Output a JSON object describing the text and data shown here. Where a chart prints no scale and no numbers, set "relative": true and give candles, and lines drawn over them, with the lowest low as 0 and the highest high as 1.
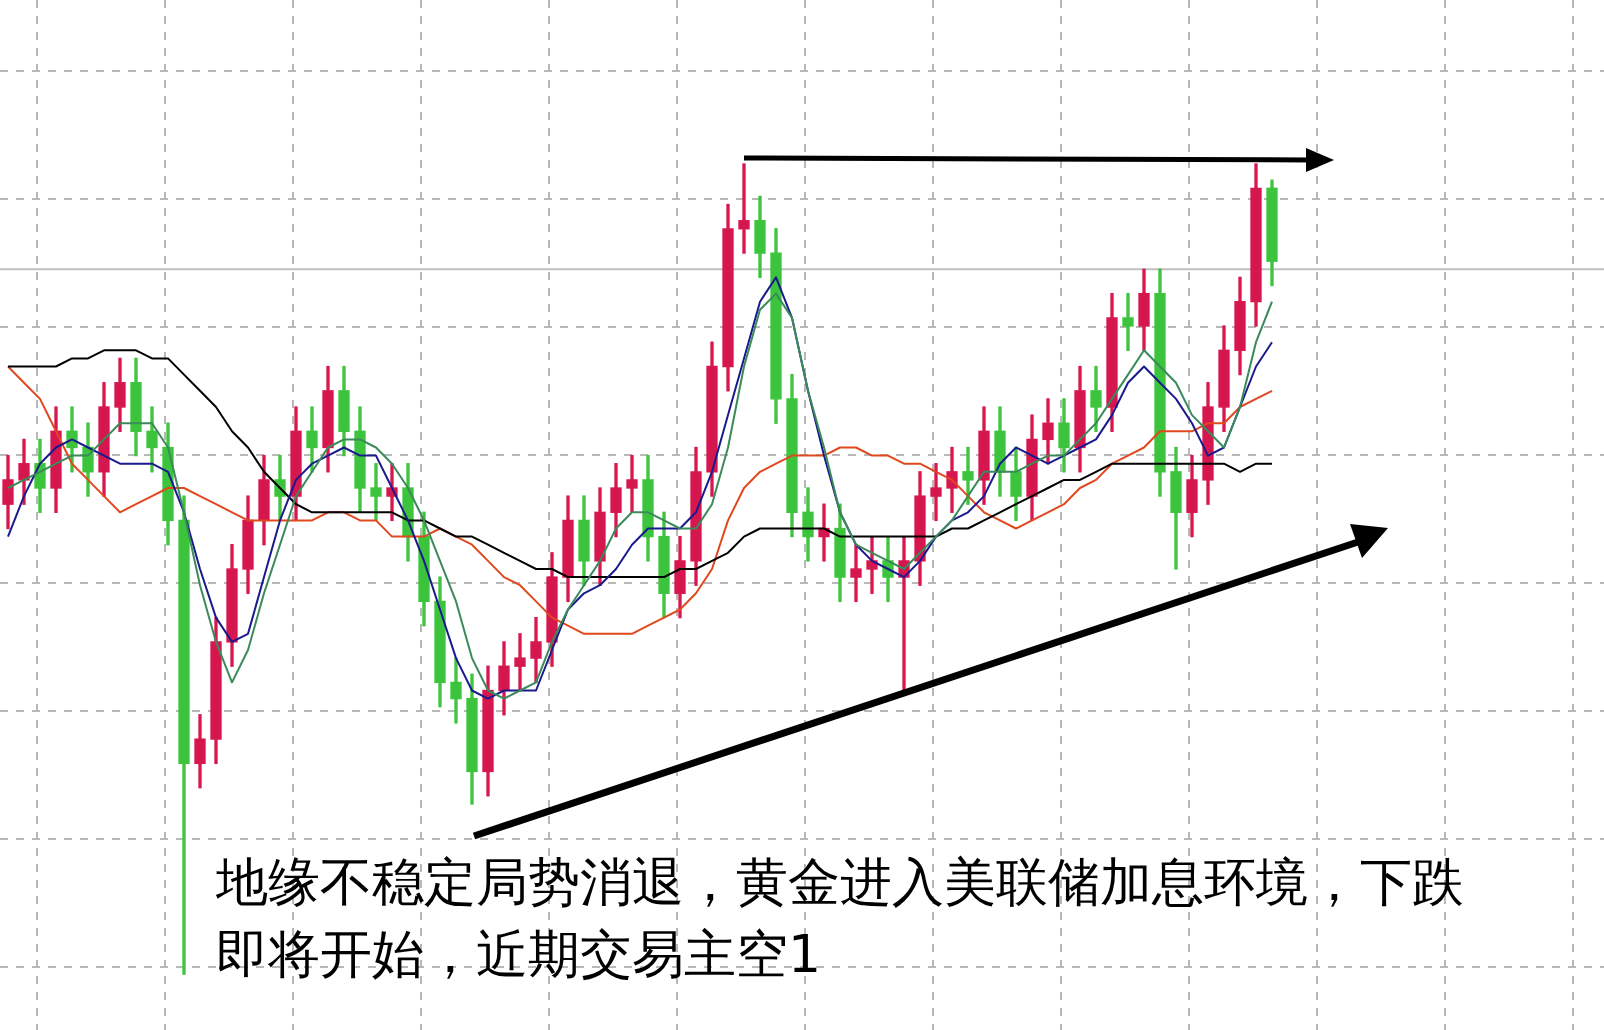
{
  "chart_data": {
    "type": "candlestick",
    "relative": true,
    "tick_labels": false,
    "grid": true,
    "legend": false,
    "marker": "none",
    "categories": [
      null,
      null,
      null,
      null,
      null,
      null,
      null,
      null,
      null,
      null,
      null,
      null,
      null,
      null,
      null,
      null,
      null,
      null,
      null,
      null,
      null,
      null,
      null,
      null,
      null,
      null,
      null,
      null,
      null,
      null,
      null,
      null,
      null,
      null,
      null,
      null,
      null,
      null,
      null,
      null,
      null,
      null,
      null,
      null,
      null,
      null,
      null,
      null,
      null,
      null,
      null,
      null,
      null,
      null,
      null,
      null,
      null,
      null,
      null,
      null,
      null,
      null,
      null,
      null,
      null,
      null,
      null,
      null,
      null,
      null,
      null,
      null,
      null,
      null,
      null,
      null,
      null,
      null,
      null,
      null
    ],
    "ohlc": [
      [
        0.58,
        0.64,
        0.55,
        0.61
      ],
      [
        0.61,
        0.66,
        0.58,
        0.63
      ],
      [
        0.63,
        0.66,
        0.57,
        0.6
      ],
      [
        0.6,
        0.7,
        0.57,
        0.67
      ],
      [
        0.67,
        0.7,
        0.62,
        0.65
      ],
      [
        0.65,
        0.68,
        0.59,
        0.62
      ],
      [
        0.62,
        0.73,
        0.59,
        0.7
      ],
      [
        0.7,
        0.76,
        0.67,
        0.73
      ],
      [
        0.73,
        0.76,
        0.64,
        0.67
      ],
      [
        0.67,
        0.7,
        0.62,
        0.65
      ],
      [
        0.65,
        0.68,
        0.53,
        0.56
      ],
      [
        0.56,
        0.59,
        0,
        0.26
      ],
      [
        0.26,
        0.32,
        0.23,
        0.29
      ],
      [
        0.29,
        0.44,
        0.26,
        0.41
      ],
      [
        0.41,
        0.53,
        0.38,
        0.5
      ],
      [
        0.5,
        0.59,
        0.47,
        0.56
      ],
      [
        0.56,
        0.64,
        0.53,
        0.61
      ],
      [
        0.61,
        0.64,
        0.56,
        0.59
      ],
      [
        0.59,
        0.7,
        0.56,
        0.67
      ],
      [
        0.67,
        0.7,
        0.62,
        0.65
      ],
      [
        0.65,
        0.75,
        0.62,
        0.72
      ],
      [
        0.72,
        0.75,
        0.64,
        0.67
      ],
      [
        0.67,
        0.7,
        0.57,
        0.6
      ],
      [
        0.6,
        0.63,
        0.56,
        0.59
      ],
      [
        0.59,
        0.63,
        0.56,
        0.6
      ],
      [
        0.6,
        0.63,
        0.51,
        0.54
      ],
      [
        0.54,
        0.57,
        0.43,
        0.46
      ],
      [
        0.46,
        0.49,
        0.33,
        0.36
      ],
      [
        0.36,
        0.39,
        0.31,
        0.34
      ],
      [
        0.34,
        0.37,
        0.21,
        0.25
      ],
      [
        0.25,
        0.38,
        0.22,
        0.35
      ],
      [
        0.35,
        0.41,
        0.32,
        0.38
      ],
      [
        0.38,
        0.42,
        0.35,
        0.39
      ],
      [
        0.39,
        0.44,
        0.36,
        0.41
      ],
      [
        0.41,
        0.52,
        0.38,
        0.49
      ],
      [
        0.49,
        0.59,
        0.46,
        0.56
      ],
      [
        0.56,
        0.59,
        0.48,
        0.51
      ],
      [
        0.51,
        0.6,
        0.48,
        0.57
      ],
      [
        0.57,
        0.63,
        0.54,
        0.6
      ],
      [
        0.6,
        0.64,
        0.57,
        0.61
      ],
      [
        0.61,
        0.64,
        0.51,
        0.54
      ],
      [
        0.54,
        0.57,
        0.44,
        0.47
      ],
      [
        0.47,
        0.54,
        0.44,
        0.51
      ],
      [
        0.51,
        0.65,
        0.48,
        0.62
      ],
      [
        0.62,
        0.78,
        0.59,
        0.75
      ],
      [
        0.75,
        0.95,
        0.72,
        0.92
      ],
      [
        0.92,
        1.0,
        0.89,
        0.93
      ],
      [
        0.93,
        0.96,
        0.86,
        0.89
      ],
      [
        0.89,
        0.92,
        0.68,
        0.71
      ],
      [
        0.71,
        0.74,
        0.54,
        0.57
      ],
      [
        0.57,
        0.6,
        0.51,
        0.54
      ],
      [
        0.54,
        0.58,
        0.51,
        0.55
      ],
      [
        0.55,
        0.58,
        0.46,
        0.49
      ],
      [
        0.49,
        0.53,
        0.46,
        0.5
      ],
      [
        0.5,
        0.54,
        0.47,
        0.51
      ],
      [
        0.51,
        0.54,
        0.46,
        0.49
      ],
      [
        0.49,
        0.54,
        0.35,
        0.51
      ],
      [
        0.51,
        0.62,
        0.48,
        0.59
      ],
      [
        0.59,
        0.63,
        0.56,
        0.6
      ],
      [
        0.6,
        0.65,
        0.57,
        0.62
      ],
      [
        0.62,
        0.65,
        0.58,
        0.61
      ],
      [
        0.61,
        0.7,
        0.58,
        0.67
      ],
      [
        0.67,
        0.7,
        0.59,
        0.62
      ],
      [
        0.62,
        0.65,
        0.56,
        0.59
      ],
      [
        0.59,
        0.69,
        0.56,
        0.66
      ],
      [
        0.66,
        0.71,
        0.63,
        0.68
      ],
      [
        0.68,
        0.71,
        0.62,
        0.65
      ],
      [
        0.65,
        0.75,
        0.62,
        0.72
      ],
      [
        0.72,
        0.75,
        0.67,
        0.7
      ],
      [
        0.7,
        0.84,
        0.67,
        0.81
      ],
      [
        0.81,
        0.84,
        0.77,
        0.8
      ],
      [
        0.8,
        0.87,
        0.77,
        0.84
      ],
      [
        0.84,
        0.87,
        0.59,
        0.62
      ],
      [
        0.62,
        0.65,
        0.5,
        0.57
      ],
      [
        0.57,
        0.64,
        0.54,
        0.61
      ],
      [
        0.61,
        0.73,
        0.58,
        0.7
      ],
      [
        0.7,
        0.8,
        0.67,
        0.77
      ],
      [
        0.77,
        0.86,
        0.74,
        0.83
      ],
      [
        0.83,
        1.0,
        0.8,
        0.97
      ],
      [
        0.97,
        0.98,
        0.85,
        0.88
      ]
    ],
    "colors": [
      "#d6174f",
      "#d6174f",
      "#3cc43c",
      "#d6174f",
      "#3cc43c",
      "#3cc43c",
      "#d6174f",
      "#d6174f",
      "#3cc43c",
      "#3cc43c",
      "#3cc43c",
      "#3cc43c",
      "#d6174f",
      "#d6174f",
      "#d6174f",
      "#d6174f",
      "#d6174f",
      "#3cc43c",
      "#d6174f",
      "#3cc43c",
      "#d6174f",
      "#3cc43c",
      "#3cc43c",
      "#3cc43c",
      "#d6174f",
      "#3cc43c",
      "#3cc43c",
      "#3cc43c",
      "#3cc43c",
      "#3cc43c",
      "#d6174f",
      "#d6174f",
      "#d6174f",
      "#d6174f",
      "#d6174f",
      "#d6174f",
      "#3cc43c",
      "#d6174f",
      "#d6174f",
      "#d6174f",
      "#3cc43c",
      "#3cc43c",
      "#d6174f",
      "#d6174f",
      "#d6174f",
      "#d6174f",
      "#d6174f",
      "#3cc43c",
      "#3cc43c",
      "#3cc43c",
      "#3cc43c",
      "#d6174f",
      "#3cc43c",
      "#d6174f",
      "#d6174f",
      "#3cc43c",
      "#d6174f",
      "#d6174f",
      "#d6174f",
      "#d6174f",
      "#3cc43c",
      "#d6174f",
      "#3cc43c",
      "#3cc43c",
      "#d6174f",
      "#d6174f",
      "#3cc43c",
      "#d6174f",
      "#3cc43c",
      "#d6174f",
      "#3cc43c",
      "#d6174f",
      "#3cc43c",
      "#3cc43c",
      "#d6174f",
      "#d6174f",
      "#d6174f",
      "#d6174f",
      "#d6174f",
      "#3cc43c"
    ],
    "series": [
      {
        "type": "line",
        "color": "#3a8a5a",
        "values": [
          0.6,
          0.61,
          0.62,
          0.63,
          0.64,
          0.64,
          0.66,
          0.68,
          0.68,
          0.68,
          0.65,
          0.57,
          0.48,
          0.41,
          0.36,
          0.4,
          0.47,
          0.53,
          0.59,
          0.62,
          0.65,
          0.66,
          0.66,
          0.65,
          0.63,
          0.6,
          0.56,
          0.51,
          0.46,
          0.39,
          0.35,
          0.34,
          0.35,
          0.36,
          0.41,
          0.45,
          0.48,
          0.51,
          0.55,
          0.57,
          0.57,
          0.56,
          0.55,
          0.55,
          0.58,
          0.65,
          0.75,
          0.82,
          0.84,
          0.81,
          0.72,
          0.65,
          0.57,
          0.53,
          0.52,
          0.51,
          0.5,
          0.52,
          0.54,
          0.56,
          0.59,
          0.62,
          0.62,
          0.62,
          0.63,
          0.64,
          0.64,
          0.66,
          0.68,
          0.71,
          0.74,
          0.77,
          0.75,
          0.73,
          0.69,
          0.67,
          0.65,
          0.7,
          0.78,
          0.83
        ]
      },
      {
        "type": "line",
        "color": "#1a1a8c",
        "values": [
          0.54,
          0.59,
          0.63,
          0.65,
          0.66,
          0.65,
          0.64,
          0.63,
          0.63,
          0.63,
          0.62,
          0.57,
          0.5,
          0.44,
          0.41,
          0.42,
          0.49,
          0.56,
          0.61,
          0.63,
          0.64,
          0.65,
          0.64,
          0.64,
          0.6,
          0.56,
          0.51,
          0.45,
          0.39,
          0.35,
          0.34,
          0.35,
          0.35,
          0.35,
          0.4,
          0.45,
          0.47,
          0.48,
          0.5,
          0.53,
          0.55,
          0.55,
          0.55,
          0.57,
          0.62,
          0.69,
          0.76,
          0.83,
          0.86,
          0.81,
          0.72,
          0.64,
          0.57,
          0.53,
          0.51,
          0.5,
          0.49,
          0.51,
          0.54,
          0.56,
          0.57,
          0.59,
          0.63,
          0.65,
          0.64,
          0.63,
          0.64,
          0.65,
          0.66,
          0.69,
          0.73,
          0.75,
          0.73,
          0.71,
          0.68,
          0.64,
          0.65,
          0.7,
          0.75,
          0.78
        ]
      },
      {
        "type": "line",
        "color": "#000000",
        "values": [
          0.75,
          0.75,
          0.75,
          0.75,
          0.76,
          0.76,
          0.77,
          0.77,
          0.77,
          0.76,
          0.76,
          0.74,
          0.72,
          0.7,
          0.67,
          0.65,
          0.62,
          0.6,
          0.58,
          0.57,
          0.57,
          0.57,
          0.57,
          0.57,
          0.57,
          0.56,
          0.56,
          0.55,
          0.54,
          0.54,
          0.53,
          0.52,
          0.51,
          0.5,
          0.5,
          0.49,
          0.49,
          0.49,
          0.49,
          0.49,
          0.49,
          0.49,
          0.5,
          0.5,
          0.51,
          0.52,
          0.54,
          0.55,
          0.55,
          0.55,
          0.55,
          0.55,
          0.54,
          0.54,
          0.54,
          0.54,
          0.54,
          0.54,
          0.54,
          0.55,
          0.55,
          0.56,
          0.57,
          0.58,
          0.59,
          0.6,
          0.61,
          0.61,
          0.62,
          0.63,
          0.63,
          0.63,
          0.63,
          0.63,
          0.63,
          0.63,
          0.63,
          0.62,
          0.63,
          0.63
        ]
      },
      {
        "type": "line",
        "color": "#e0481e",
        "values": [
          0.75,
          0.73,
          0.71,
          0.67,
          0.63,
          0.61,
          0.59,
          0.57,
          0.58,
          0.59,
          0.6,
          0.6,
          0.59,
          0.58,
          0.57,
          0.56,
          0.56,
          0.56,
          0.56,
          0.56,
          0.57,
          0.57,
          0.56,
          0.56,
          0.54,
          0.54,
          0.54,
          0.55,
          0.54,
          0.53,
          0.51,
          0.49,
          0.48,
          0.46,
          0.44,
          0.43,
          0.42,
          0.42,
          0.42,
          0.42,
          0.43,
          0.44,
          0.45,
          0.47,
          0.5,
          0.56,
          0.6,
          0.62,
          0.63,
          0.64,
          0.64,
          0.64,
          0.65,
          0.65,
          0.64,
          0.64,
          0.63,
          0.63,
          0.62,
          0.61,
          0.59,
          0.57,
          0.56,
          0.55,
          0.56,
          0.57,
          0.58,
          0.6,
          0.61,
          0.63,
          0.64,
          0.65,
          0.67,
          0.67,
          0.67,
          0.68,
          0.68,
          0.7,
          0.71,
          0.72
        ]
      }
    ],
    "ref_lines": [
      {
        "axis": "y",
        "value": 0.87,
        "color": "#c0c0c0"
      }
    ],
    "annotations": [
      "地缘不稳定局势消退，黄金进入美联储加息环境，下跌即将开始，近期交易主空1"
    ]
  }
}
